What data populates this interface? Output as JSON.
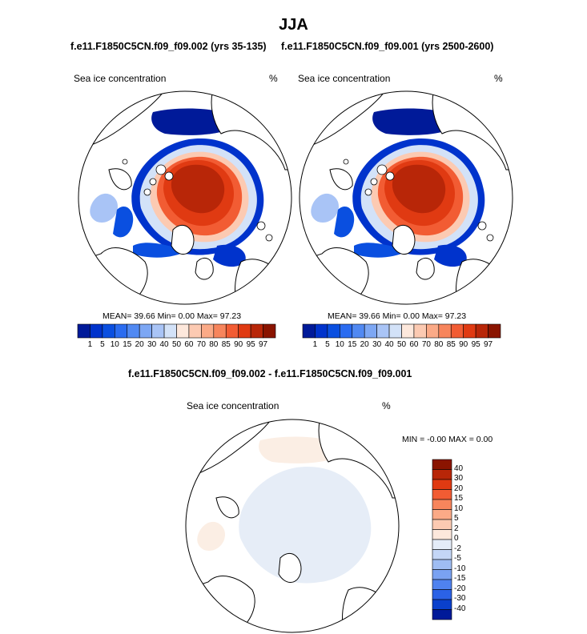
{
  "figure": {
    "title": "JJA",
    "left_panel_title": "f.e11.F1850C5CN.f09_f09.002 (yrs 35-135)",
    "right_panel_title": "f.e11.F1850C5CN.f09_f09.001 (yrs 2500-2600)",
    "diff_panel_title": "f.e11.F1850C5CN.f09_f09.002 - f.e11.F1850C5CN.f09_f09.001"
  },
  "panels": {
    "left": {
      "variable": "Sea ice concentration",
      "units": "%",
      "stats": "MEAN=  39.66  Min=   0.00  Max=  97.23"
    },
    "right": {
      "variable": "Sea ice concentration",
      "units": "%",
      "stats": "MEAN=  39.66  Min=   0.00  Max=  97.23"
    },
    "diff": {
      "variable": "Sea ice concentration",
      "units": "%",
      "stats": "MIN =  -0.00 MAX =   0.00"
    }
  },
  "colors": {
    "ice_colorbar": [
      "#001a99",
      "#0033cc",
      "#0a4fe0",
      "#2b6cf0",
      "#5189f2",
      "#7da7f4",
      "#a9c4f6",
      "#d3e2f8",
      "#fde8dc",
      "#fccab2",
      "#fbaa87",
      "#f7855c",
      "#f25c33",
      "#e03a12",
      "#b82608",
      "#8a1400"
    ],
    "diff_colorbar": [
      "#8a1400",
      "#b82608",
      "#e03a12",
      "#f25c33",
      "#f7855c",
      "#fbaa87",
      "#fccab2",
      "#fde8dc",
      "#e4ecf8",
      "#c4d6f6",
      "#9fbdf3",
      "#7aa2f2",
      "#4f82ef",
      "#2b62e6",
      "#0a40cc",
      "#001a99"
    ]
  },
  "chart_data": [
    {
      "type": "heatmap",
      "title": "f.e11.F1850C5CN.f09_f09.002 (yrs 35-135)",
      "subtitle": "Sea ice concentration",
      "units": "%",
      "projection": "north polar stereographic",
      "stats": {
        "mean": 39.66,
        "min": 0.0,
        "max": 97.23
      },
      "colorbar_levels": [
        1,
        5,
        10,
        15,
        20,
        30,
        40,
        50,
        60,
        70,
        80,
        85,
        90,
        95,
        97
      ]
    },
    {
      "type": "heatmap",
      "title": "f.e11.F1850C5CN.f09_f09.001 (yrs 2500-2600)",
      "subtitle": "Sea ice concentration",
      "units": "%",
      "projection": "north polar stereographic",
      "stats": {
        "mean": 39.66,
        "min": 0.0,
        "max": 97.23
      },
      "colorbar_levels": [
        1,
        5,
        10,
        15,
        20,
        30,
        40,
        50,
        60,
        70,
        80,
        85,
        90,
        95,
        97
      ]
    },
    {
      "type": "heatmap",
      "title": "f.e11.F1850C5CN.f09_f09.002 - f.e11.F1850C5CN.f09_f09.001",
      "subtitle": "Sea ice concentration",
      "units": "%",
      "projection": "north polar stereographic",
      "stats": {
        "min": -0.0,
        "max": 0.0
      },
      "colorbar_levels": [
        40,
        30,
        20,
        15,
        10,
        5,
        2,
        0,
        -2,
        -5,
        -10,
        -15,
        -20,
        -30,
        -40
      ]
    }
  ]
}
